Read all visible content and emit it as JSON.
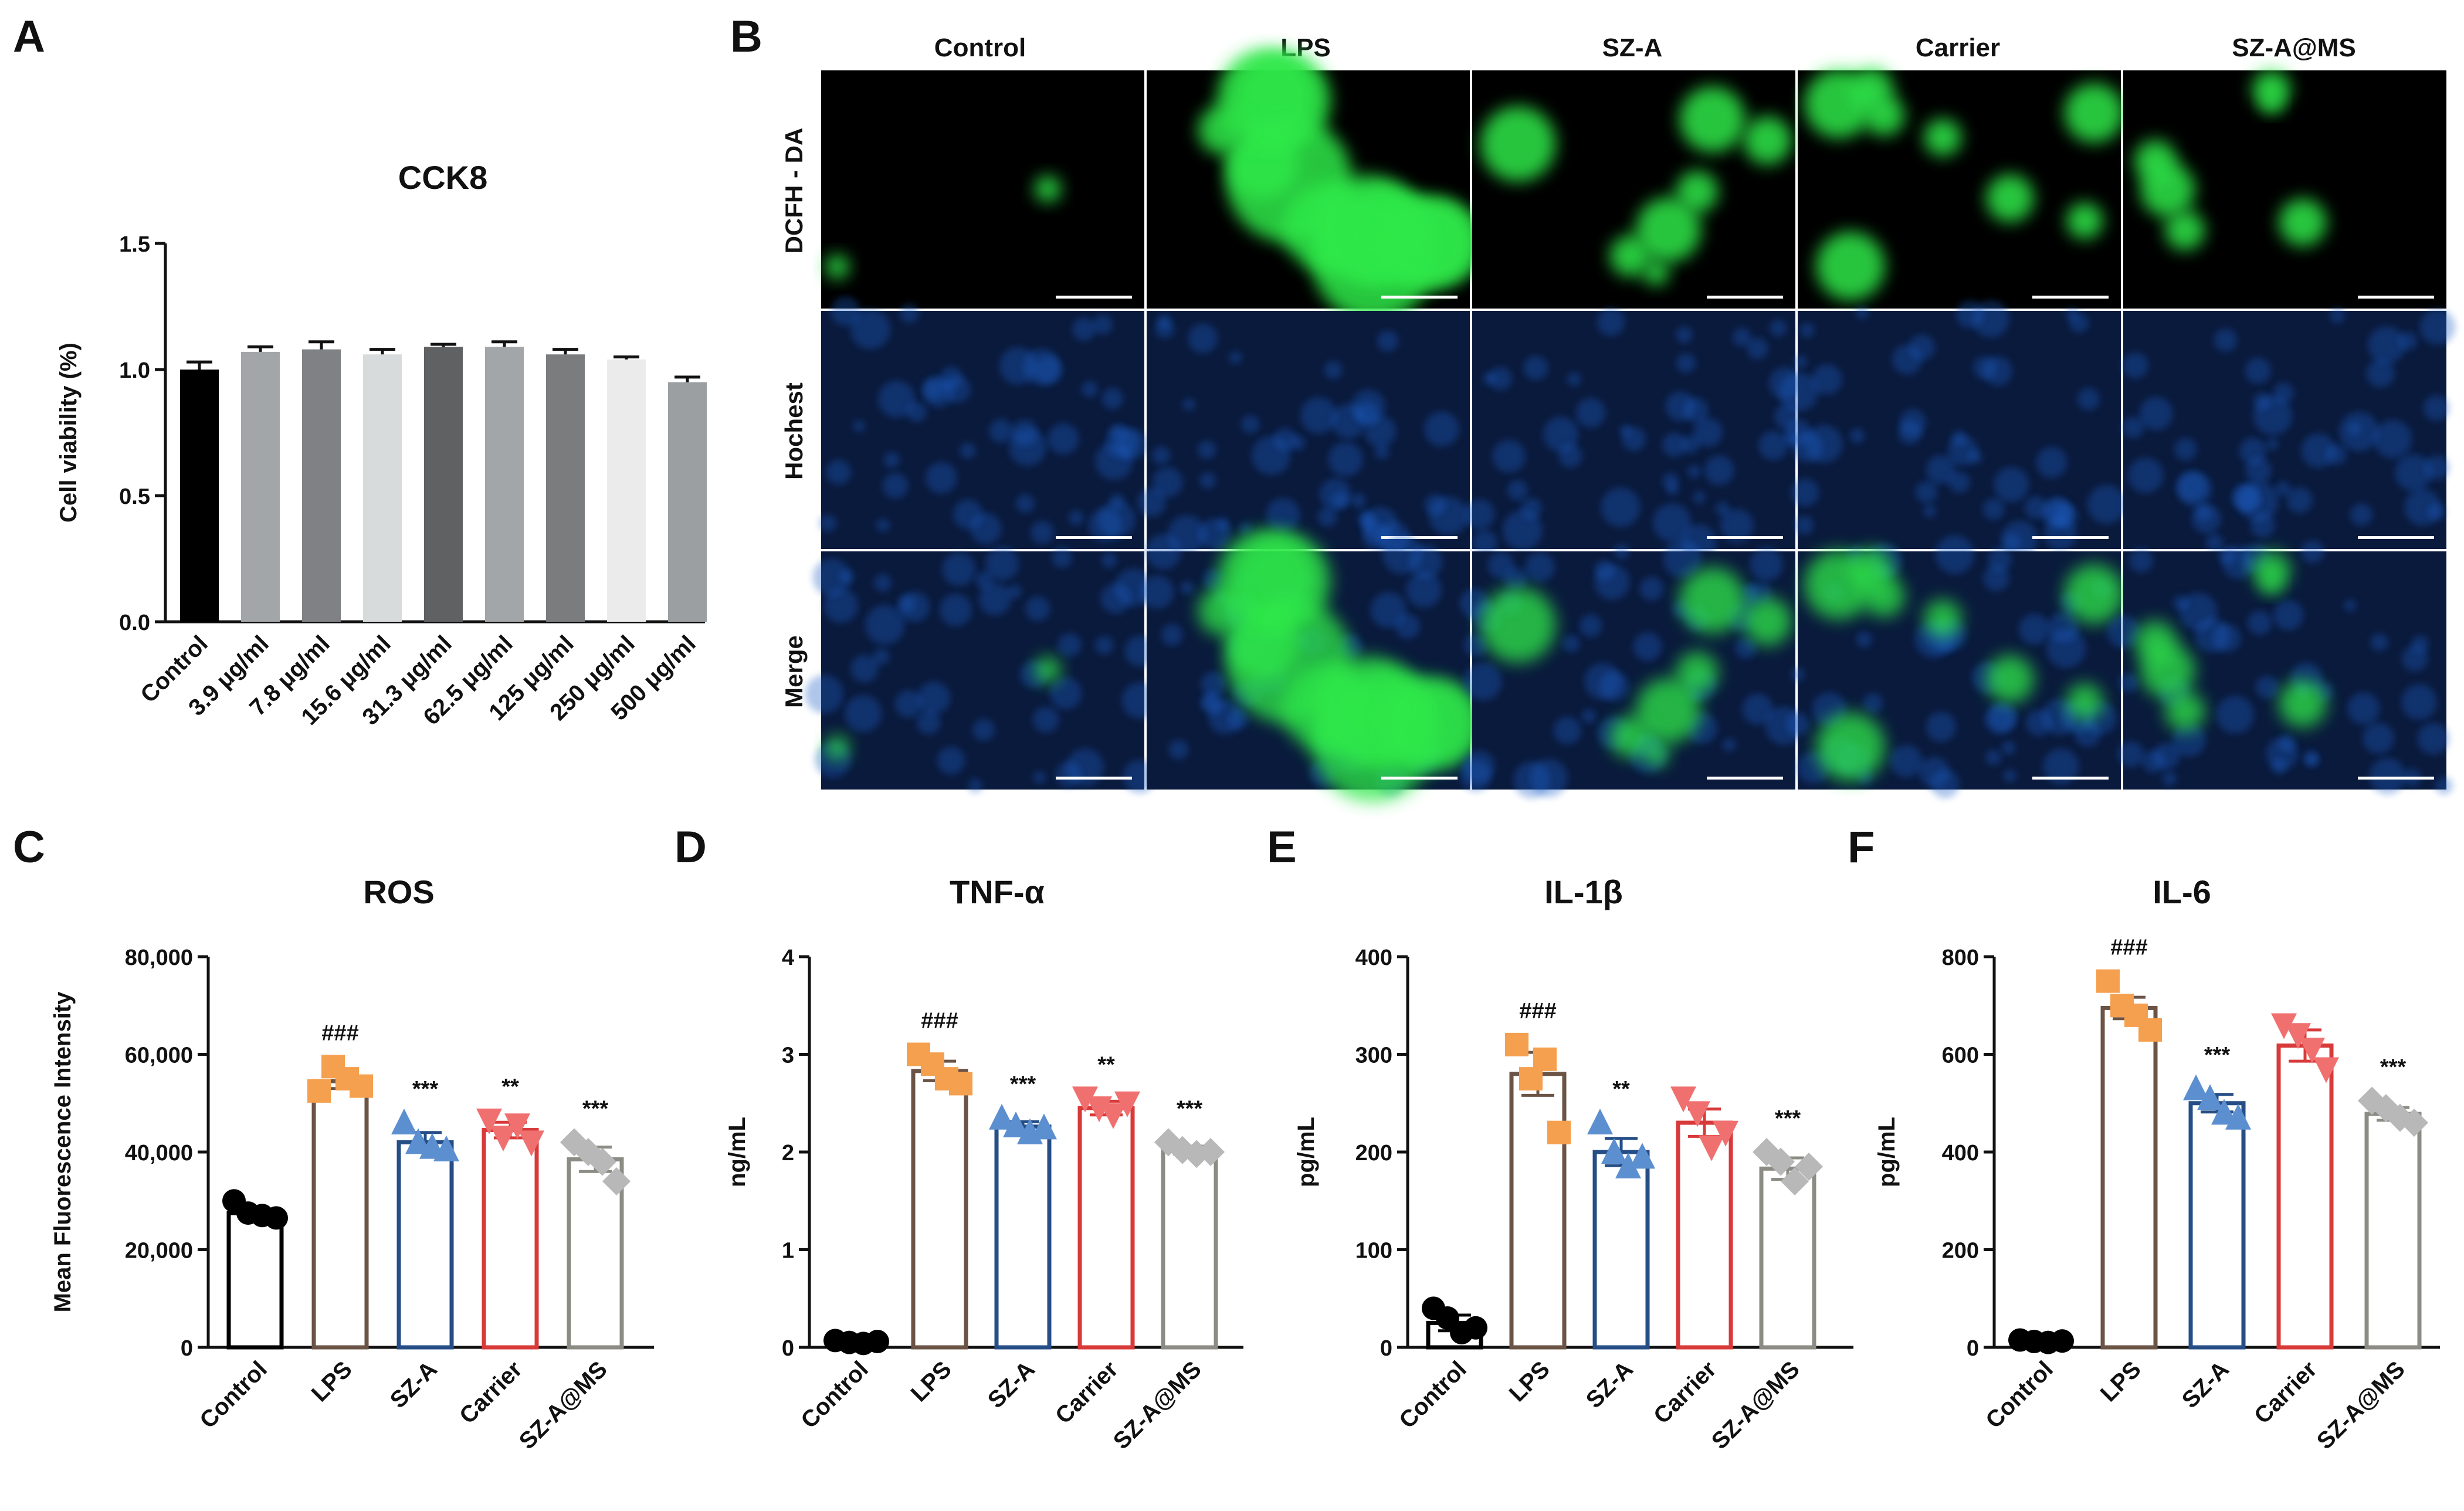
{
  "panels": {
    "A": {
      "letter": "A"
    },
    "B": {
      "letter": "B"
    },
    "C": {
      "letter": "C"
    },
    "D": {
      "letter": "D"
    },
    "E": {
      "letter": "E"
    },
    "F": {
      "letter": "F"
    }
  },
  "microscopy": {
    "columns": [
      "Control",
      "LPS",
      "SZ-A",
      "Carrier",
      "SZ-A@MS"
    ],
    "rows": [
      "DCFH - DA",
      "Hochest",
      "Merge"
    ],
    "colors": {
      "green": "#2ee84a",
      "blue": "#1f5fc8",
      "background": "#000000"
    },
    "green_signal_level": [
      0.02,
      1.0,
      0.45,
      0.55,
      0.35
    ]
  },
  "chart_data": [
    {
      "id": "A",
      "type": "bar",
      "title": "CCK8",
      "ylabel": "Cell viability (%)",
      "xlabel": "",
      "ylim": [
        0,
        1.5
      ],
      "yticks": [
        "0.0",
        "0.5",
        "1.0",
        "1.5"
      ],
      "yticks_values": [
        0,
        0.5,
        1.0,
        1.5
      ],
      "categories": [
        "Control",
        "3.9 μg/ml",
        "7.8 μg/ml",
        "15.6 μg/ml",
        "31.3 μg/ml",
        "62.5 μg/ml",
        "125 μg/ml",
        "250 μg/ml",
        "500 μg/ml"
      ],
      "values": [
        1.0,
        1.07,
        1.08,
        1.06,
        1.09,
        1.09,
        1.06,
        1.04,
        0.95
      ],
      "errors": [
        0.03,
        0.02,
        0.03,
        0.02,
        0.01,
        0.02,
        0.02,
        0.01,
        0.02
      ],
      "colors": [
        "#000000",
        "#a3a6a9",
        "#7f8184",
        "#d8dbdb",
        "#5f6163",
        "#a3a6a9",
        "#7a7c7e",
        "#ebebeb",
        "#9c9fa2"
      ]
    },
    {
      "id": "C",
      "type": "bar",
      "title": "ROS",
      "ylabel": "Mean Fluorescence Intensity",
      "xlabel": "",
      "ylim": [
        0,
        80000
      ],
      "yticks": [
        "0",
        "20,000",
        "40,000",
        "60,000",
        "80,000"
      ],
      "yticks_values": [
        0,
        20000,
        40000,
        60000,
        80000
      ],
      "categories": [
        "Control",
        "LPS",
        "SZ-A",
        "Carrier",
        "SZ-A@MS"
      ],
      "values": [
        27500,
        54500,
        42000,
        44500,
        38500
      ],
      "errors": [
        800,
        1500,
        2000,
        1600,
        2500
      ],
      "points": [
        [
          30000,
          27500,
          27000,
          26500
        ],
        [
          52500,
          57500,
          55000,
          53500
        ],
        [
          46000,
          42000,
          41000,
          40500
        ],
        [
          46500,
          43000,
          45500,
          42000
        ],
        [
          42000,
          40000,
          38000,
          34000
        ]
      ],
      "annotations": [
        "",
        "###",
        "***",
        "**",
        "***"
      ],
      "colors": [
        "#000000",
        "#f5a04e",
        "#5b8fd0",
        "#f07070",
        "#b8b8b8"
      ],
      "edgecolors": [
        "#000000",
        "#6b5446",
        "#264e86",
        "#d83a3a",
        "#8c8c84"
      ],
      "markers": [
        "circle",
        "square",
        "triangle-up",
        "triangle-down",
        "diamond"
      ]
    },
    {
      "id": "D",
      "type": "bar",
      "title": "TNF-α",
      "ylabel": "ng/mL",
      "xlabel": "",
      "ylim": [
        0,
        4
      ],
      "yticks": [
        "0",
        "1",
        "2",
        "3",
        "4"
      ],
      "yticks_values": [
        0,
        1,
        2,
        3,
        4
      ],
      "categories": [
        "Control",
        "LPS",
        "SZ-A",
        "Carrier",
        "SZ-A@MS"
      ],
      "values": [
        0.05,
        2.83,
        2.26,
        2.45,
        2.02
      ],
      "errors": [
        0.01,
        0.1,
        0.05,
        0.07,
        0.04
      ],
      "points": [
        [
          0.07,
          0.05,
          0.04,
          0.06
        ],
        [
          3.0,
          2.9,
          2.75,
          2.7
        ],
        [
          2.35,
          2.27,
          2.2,
          2.25
        ],
        [
          2.55,
          2.45,
          2.38,
          2.5
        ],
        [
          2.1,
          2.02,
          1.98,
          2.0
        ]
      ],
      "annotations": [
        "",
        "###",
        "***",
        "**",
        "***"
      ],
      "colors": [
        "#000000",
        "#f5a04e",
        "#5b8fd0",
        "#f07070",
        "#b8b8b8"
      ],
      "edgecolors": [
        "#000000",
        "#6b5446",
        "#264e86",
        "#d83a3a",
        "#8c8c84"
      ],
      "markers": [
        "circle",
        "square",
        "triangle-up",
        "triangle-down",
        "diamond"
      ]
    },
    {
      "id": "E",
      "type": "bar",
      "title": "IL-1β",
      "ylabel": "pg/mL",
      "xlabel": "",
      "ylim": [
        0,
        400
      ],
      "yticks": [
        "0",
        "100",
        "200",
        "300",
        "400"
      ],
      "yticks_values": [
        0,
        100,
        200,
        300,
        400
      ],
      "categories": [
        "Control",
        "LPS",
        "SZ-A",
        "Carrier",
        "SZ-A@MS"
      ],
      "values": [
        25,
        280,
        200,
        230,
        183
      ],
      "errors": [
        8,
        22,
        14,
        14,
        11
      ],
      "points": [
        [
          40,
          30,
          15,
          20
        ],
        [
          310,
          275,
          295,
          220
        ],
        [
          230,
          200,
          185,
          195
        ],
        [
          255,
          240,
          205,
          220
        ],
        [
          200,
          190,
          170,
          185
        ]
      ],
      "annotations": [
        "",
        "###",
        "**",
        "",
        "***"
      ],
      "colors": [
        "#000000",
        "#f5a04e",
        "#5b8fd0",
        "#f07070",
        "#b8b8b8"
      ],
      "edgecolors": [
        "#000000",
        "#6b5446",
        "#264e86",
        "#d83a3a",
        "#8c8c84"
      ],
      "markers": [
        "circle",
        "square",
        "triangle-up",
        "triangle-down",
        "diamond"
      ]
    },
    {
      "id": "F",
      "type": "bar",
      "title": "IL-6",
      "ylabel": "pg/mL",
      "xlabel": "",
      "ylim": [
        0,
        800
      ],
      "yticks": [
        "0",
        "200",
        "400",
        "600",
        "800"
      ],
      "yticks_values": [
        0,
        200,
        400,
        600,
        800
      ],
      "categories": [
        "Control",
        "LPS",
        "SZ-A",
        "Carrier",
        "SZ-A@MS"
      ],
      "values": [
        12,
        695,
        500,
        618,
        478
      ],
      "errors": [
        3,
        22,
        18,
        32,
        13
      ],
      "points": [
        [
          15,
          12,
          10,
          13
        ],
        [
          750,
          700,
          680,
          650
        ],
        [
          530,
          510,
          480,
          470
        ],
        [
          660,
          640,
          610,
          570
        ],
        [
          505,
          490,
          470,
          460
        ]
      ],
      "annotations": [
        "",
        "###",
        "***",
        "",
        "***"
      ],
      "colors": [
        "#000000",
        "#f5a04e",
        "#5b8fd0",
        "#f07070",
        "#b8b8b8"
      ],
      "edgecolors": [
        "#000000",
        "#6b5446",
        "#264e86",
        "#d83a3a",
        "#8c8c84"
      ],
      "markers": [
        "circle",
        "square",
        "triangle-up",
        "triangle-down",
        "diamond"
      ]
    }
  ]
}
